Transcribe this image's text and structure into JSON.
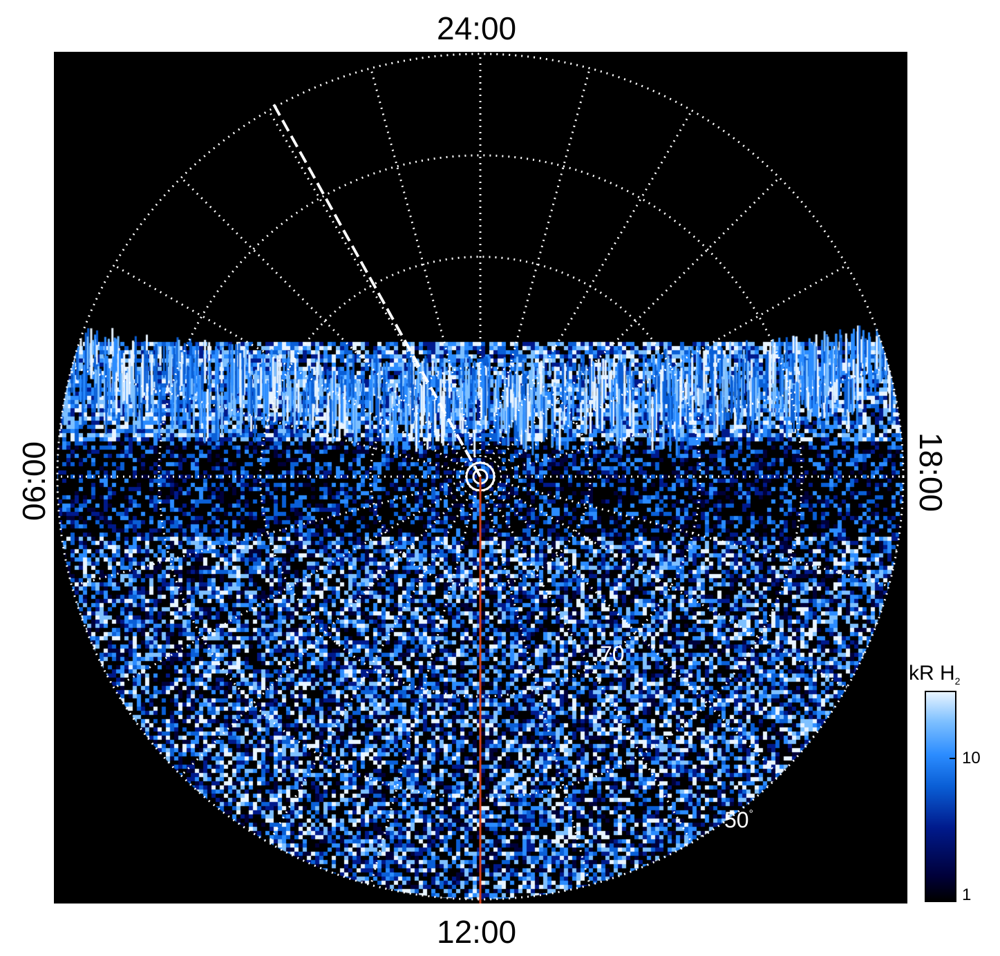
{
  "labels": {
    "top": "24:00",
    "bottom": "12:00",
    "left": "06:00",
    "right": "18:00"
  },
  "latitude_labels": [
    {
      "value": "70",
      "unit": "°"
    },
    {
      "value": "50",
      "unit": "°"
    }
  ],
  "colorbar": {
    "title_main": "kR H",
    "title_sub": "2",
    "ticks": [
      "10",
      "1"
    ],
    "scale": "log",
    "range": [
      1,
      30
    ],
    "colors": [
      "#000000",
      "#00003a",
      "#001a8c",
      "#0a5fd6",
      "#2b8cff",
      "#7ec0ff",
      "#e8f4ff"
    ]
  },
  "overlay_colors": {
    "grid": "#ffffff",
    "meridian_line": "#d2401c",
    "background": "#000000"
  }
}
